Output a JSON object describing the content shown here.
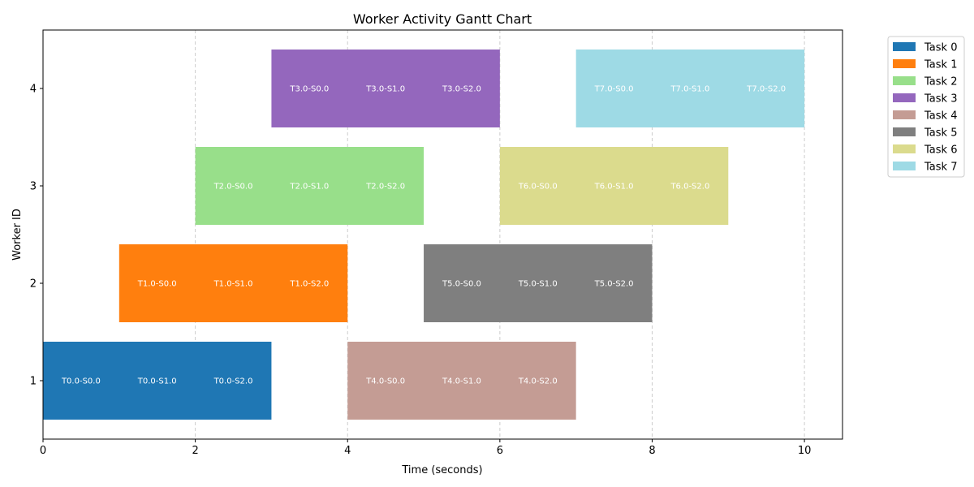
{
  "chart_data": {
    "type": "gantt",
    "title": "Worker Activity Gantt Chart",
    "xlabel": "Time (seconds)",
    "ylabel": "Worker ID",
    "xlim": [
      0,
      10.5
    ],
    "ylim": [
      0.4,
      4.6
    ],
    "xticks": [
      "0",
      "2",
      "4",
      "6",
      "8",
      "10"
    ],
    "yticks": [
      "1",
      "2",
      "3",
      "4"
    ],
    "grid": "x-dashed",
    "legend_position": "outside-top-right",
    "legend": [
      "Task 0",
      "Task 1",
      "Task 2",
      "Task 3",
      "Task 4",
      "Task 5",
      "Task 6",
      "Task 7"
    ],
    "colors": [
      "#1f77b4",
      "#ff7f0e",
      "#98df8a",
      "#9467bd",
      "#c49c94",
      "#7f7f7f",
      "#dbdb8d",
      "#9edae5"
    ],
    "tasks": [
      {
        "task": 0,
        "worker": 1,
        "start": 0,
        "end": 3,
        "segments": [
          "T0.0-S0.0",
          "T0.0-S1.0",
          "T0.0-S2.0"
        ]
      },
      {
        "task": 1,
        "worker": 2,
        "start": 1,
        "end": 4,
        "segments": [
          "T1.0-S0.0",
          "T1.0-S1.0",
          "T1.0-S2.0"
        ]
      },
      {
        "task": 2,
        "worker": 3,
        "start": 2,
        "end": 5,
        "segments": [
          "T2.0-S0.0",
          "T2.0-S1.0",
          "T2.0-S2.0"
        ]
      },
      {
        "task": 3,
        "worker": 4,
        "start": 3,
        "end": 6,
        "segments": [
          "T3.0-S0.0",
          "T3.0-S1.0",
          "T3.0-S2.0"
        ]
      },
      {
        "task": 4,
        "worker": 1,
        "start": 4,
        "end": 7,
        "segments": [
          "T4.0-S0.0",
          "T4.0-S1.0",
          "T4.0-S2.0"
        ]
      },
      {
        "task": 5,
        "worker": 2,
        "start": 5,
        "end": 8,
        "segments": [
          "T5.0-S0.0",
          "T5.0-S1.0",
          "T5.0-S2.0"
        ]
      },
      {
        "task": 6,
        "worker": 3,
        "start": 6,
        "end": 9,
        "segments": [
          "T6.0-S0.0",
          "T6.0-S1.0",
          "T6.0-S2.0"
        ]
      },
      {
        "task": 7,
        "worker": 4,
        "start": 7,
        "end": 10,
        "segments": [
          "T7.0-S0.0",
          "T7.0-S1.0",
          "T7.0-S2.0"
        ]
      }
    ]
  }
}
